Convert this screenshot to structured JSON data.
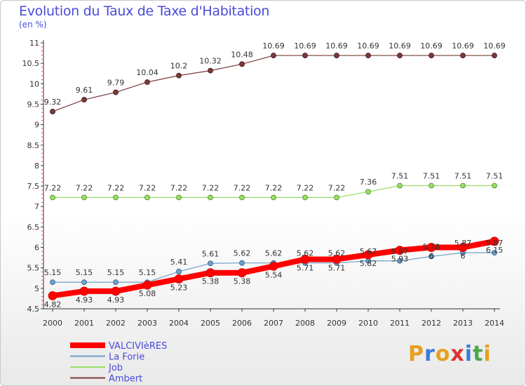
{
  "chart_data": {
    "type": "line",
    "title": "Evolution du Taux de Taxe d'Habitation",
    "subtitle": "(en %)",
    "xlabel": "",
    "ylabel": "",
    "categories": [
      "2000",
      "2001",
      "2002",
      "2003",
      "2004",
      "2005",
      "2006",
      "2007",
      "2008",
      "2009",
      "2010",
      "2011",
      "2012",
      "2013",
      "2014"
    ],
    "ylim": [
      4.5,
      11
    ],
    "yticks": [
      "4.5",
      "5",
      "5.5",
      "6",
      "6.5",
      "7",
      "7.5",
      "8",
      "8.5",
      "9",
      "9.5",
      "10",
      "10.5",
      "11"
    ],
    "grid": false,
    "series": [
      {
        "name": "VALCIVIèRES",
        "color": "#ff0000",
        "values": [
          4.82,
          4.93,
          4.93,
          5.08,
          5.23,
          5.38,
          5.38,
          5.54,
          5.71,
          5.71,
          5.82,
          5.93,
          6,
          6,
          6.15
        ],
        "labels": [
          "4.82",
          "4.93",
          "4.93",
          "5.08",
          "5.23",
          "5.38",
          "5.38",
          "5.54",
          "5.71",
          "5.71",
          "5.82",
          "5.93",
          "6",
          "6",
          "6.15"
        ]
      },
      {
        "name": "La Forie",
        "color": "#6fa0c8",
        "values": [
          5.15,
          5.15,
          5.15,
          5.15,
          5.41,
          5.61,
          5.62,
          5.62,
          5.62,
          5.62,
          5.67,
          5.67,
          5.78,
          5.87,
          5.87
        ],
        "labels": [
          "5.15",
          "5.15",
          "5.15",
          "5.15",
          "5.41",
          "5.61",
          "5.62",
          "5.62",
          "5.62",
          "5.62",
          "5.67",
          "5.67",
          "5.78",
          "5.87",
          "5.87"
        ]
      },
      {
        "name": "Job",
        "color": "#99dd66",
        "values": [
          7.22,
          7.22,
          7.22,
          7.22,
          7.22,
          7.22,
          7.22,
          7.22,
          7.22,
          7.22,
          7.36,
          7.51,
          7.51,
          7.51,
          7.51
        ],
        "labels": [
          "7.22",
          "7.22",
          "7.22",
          "7.22",
          "7.22",
          "7.22",
          "7.22",
          "7.22",
          "7.22",
          "7.22",
          "7.36",
          "7.51",
          "7.51",
          "7.51",
          "7.51"
        ]
      },
      {
        "name": "Ambert",
        "color": "#7a3b3b",
        "values": [
          9.32,
          9.61,
          9.79,
          10.04,
          10.2,
          10.32,
          10.48,
          10.69,
          10.69,
          10.69,
          10.69,
          10.69,
          10.69,
          10.69,
          10.69
        ],
        "labels": [
          "9.32",
          "9.61",
          "9.79",
          "10.04",
          "10.2",
          "10.32",
          "10.48",
          "10.69",
          "10.69",
          "10.69",
          "10.69",
          "10.69",
          "10.69",
          "10.69",
          "10.69"
        ]
      }
    ]
  },
  "logo": {
    "letters": [
      "P",
      "r",
      "o",
      "x",
      "i",
      "t",
      "i"
    ],
    "colors": [
      "#e8a020",
      "#3a7bd5",
      "#e8a020",
      "#d33",
      "#3a7bd5",
      "#4aa84a",
      "#e8a020"
    ]
  }
}
